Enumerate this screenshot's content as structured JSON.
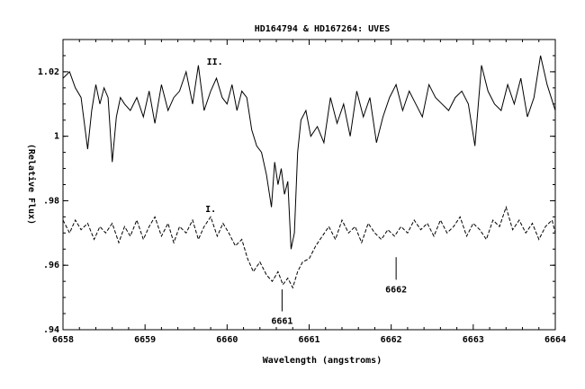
{
  "chart_data": {
    "type": "line",
    "title": "HD164794 & HD167264: UVES",
    "xlabel": "Wavelength (angstroms)",
    "ylabel": "(Relative Flux)",
    "xlim": [
      6658,
      6664
    ],
    "ylim": [
      0.94,
      1.03
    ],
    "xticks": [
      6658,
      6659,
      6660,
      6661,
      6662,
      6663,
      6664
    ],
    "xtick_labels": [
      "6658",
      "6659",
      "6660",
      "6661",
      "6662",
      "6663",
      "6664"
    ],
    "yticks": [
      0.94,
      0.96,
      0.98,
      1.0,
      1.02
    ],
    "ytick_labels": [
      ".94",
      ".96",
      ".98",
      "1",
      "1.02"
    ],
    "grid": false,
    "series": [
      {
        "name": "II.",
        "style": "solid",
        "color": "#000000",
        "label_at": [
          6659.85,
          1.0222
        ],
        "x": [
          6658.0,
          6658.08,
          6658.15,
          6658.22,
          6658.3,
          6658.35,
          6658.4,
          6658.45,
          6658.5,
          6658.55,
          6658.6,
          6658.65,
          6658.7,
          6658.75,
          6658.82,
          6658.9,
          6658.98,
          6659.05,
          6659.12,
          6659.2,
          6659.28,
          6659.35,
          6659.42,
          6659.5,
          6659.58,
          6659.65,
          6659.72,
          6659.8,
          6659.87,
          6659.94,
          6660.0,
          6660.06,
          6660.12,
          6660.18,
          6660.24,
          6660.3,
          6660.36,
          6660.42,
          6660.48,
          6660.54,
          6660.58,
          6660.62,
          6660.66,
          6660.7,
          6660.74,
          6660.78,
          6660.82,
          6660.86,
          6660.9,
          6660.96,
          6661.02,
          6661.1,
          6661.18,
          6661.26,
          6661.34,
          6661.42,
          6661.5,
          6661.58,
          6661.66,
          6661.74,
          6661.82,
          6661.9,
          6661.98,
          6662.06,
          6662.14,
          6662.22,
          6662.3,
          6662.38,
          6662.46,
          6662.54,
          6662.62,
          6662.7,
          6662.78,
          6662.86,
          6662.94,
          6663.02,
          6663.1,
          6663.18,
          6663.26,
          6663.34,
          6663.42,
          6663.5,
          6663.58,
          6663.66,
          6663.74,
          6663.82,
          6663.9,
          6664.0
        ],
        "y": [
          1.018,
          1.02,
          1.015,
          1.012,
          0.996,
          1.008,
          1.016,
          1.01,
          1.015,
          1.012,
          0.992,
          1.006,
          1.012,
          1.01,
          1.008,
          1.012,
          1.006,
          1.014,
          1.004,
          1.016,
          1.008,
          1.012,
          1.014,
          1.02,
          1.01,
          1.022,
          1.008,
          1.014,
          1.018,
          1.012,
          1.01,
          1.016,
          1.008,
          1.014,
          1.012,
          1.002,
          0.997,
          0.995,
          0.988,
          0.978,
          0.992,
          0.985,
          0.99,
          0.982,
          0.986,
          0.965,
          0.97,
          0.995,
          1.005,
          1.008,
          1.0,
          1.003,
          0.998,
          1.012,
          1.004,
          1.01,
          1.0,
          1.014,
          1.006,
          1.012,
          0.998,
          1.006,
          1.012,
          1.016,
          1.008,
          1.014,
          1.01,
          1.006,
          1.016,
          1.012,
          1.01,
          1.008,
          1.012,
          1.014,
          1.01,
          0.997,
          1.022,
          1.014,
          1.01,
          1.008,
          1.016,
          1.01,
          1.018,
          1.006,
          1.012,
          1.025,
          1.016,
          1.008
        ]
      },
      {
        "name": "I.",
        "style": "dashed",
        "color": "#000000",
        "label_at": [
          6659.8,
          0.9765
        ],
        "x": [
          6658.0,
          6658.08,
          6658.15,
          6658.22,
          6658.3,
          6658.38,
          6658.45,
          6658.52,
          6658.6,
          6658.68,
          6658.75,
          6658.82,
          6658.9,
          6658.98,
          6659.05,
          6659.12,
          6659.2,
          6659.28,
          6659.35,
          6659.42,
          6659.5,
          6659.58,
          6659.65,
          6659.72,
          6659.8,
          6659.88,
          6659.95,
          6660.02,
          6660.1,
          6660.18,
          6660.25,
          6660.32,
          6660.4,
          6660.48,
          6660.55,
          6660.62,
          6660.68,
          6660.74,
          6660.8,
          6660.86,
          6660.92,
          6661.0,
          6661.08,
          6661.16,
          6661.24,
          6661.32,
          6661.4,
          6661.48,
          6661.56,
          6661.64,
          6661.72,
          6661.8,
          6661.88,
          6661.96,
          6662.04,
          6662.12,
          6662.2,
          6662.28,
          6662.36,
          6662.44,
          6662.52,
          6662.6,
          6662.68,
          6662.76,
          6662.84,
          6662.92,
          6663.0,
          6663.08,
          6663.16,
          6663.24,
          6663.32,
          6663.4,
          6663.48,
          6663.56,
          6663.64,
          6663.72,
          6663.8,
          6663.88,
          6663.96,
          6664.0
        ],
        "y": [
          0.974,
          0.97,
          0.974,
          0.971,
          0.973,
          0.968,
          0.972,
          0.97,
          0.973,
          0.967,
          0.972,
          0.969,
          0.974,
          0.968,
          0.972,
          0.975,
          0.969,
          0.973,
          0.967,
          0.972,
          0.97,
          0.974,
          0.968,
          0.972,
          0.975,
          0.969,
          0.973,
          0.97,
          0.966,
          0.968,
          0.962,
          0.958,
          0.961,
          0.957,
          0.955,
          0.958,
          0.954,
          0.956,
          0.953,
          0.958,
          0.961,
          0.962,
          0.966,
          0.969,
          0.972,
          0.968,
          0.974,
          0.97,
          0.972,
          0.967,
          0.973,
          0.97,
          0.968,
          0.971,
          0.969,
          0.972,
          0.97,
          0.974,
          0.971,
          0.973,
          0.969,
          0.974,
          0.97,
          0.972,
          0.975,
          0.969,
          0.973,
          0.971,
          0.968,
          0.974,
          0.972,
          0.978,
          0.971,
          0.974,
          0.97,
          0.973,
          0.968,
          0.972,
          0.974,
          0.97
        ]
      }
    ],
    "annotations": [
      {
        "text": "6661",
        "x": 6660.67,
        "y_top": 0.9525,
        "y_bottom": 0.9457
      },
      {
        "text": "6662",
        "x": 6662.06,
        "y_top": 0.9625,
        "y_bottom": 0.9555
      }
    ]
  }
}
